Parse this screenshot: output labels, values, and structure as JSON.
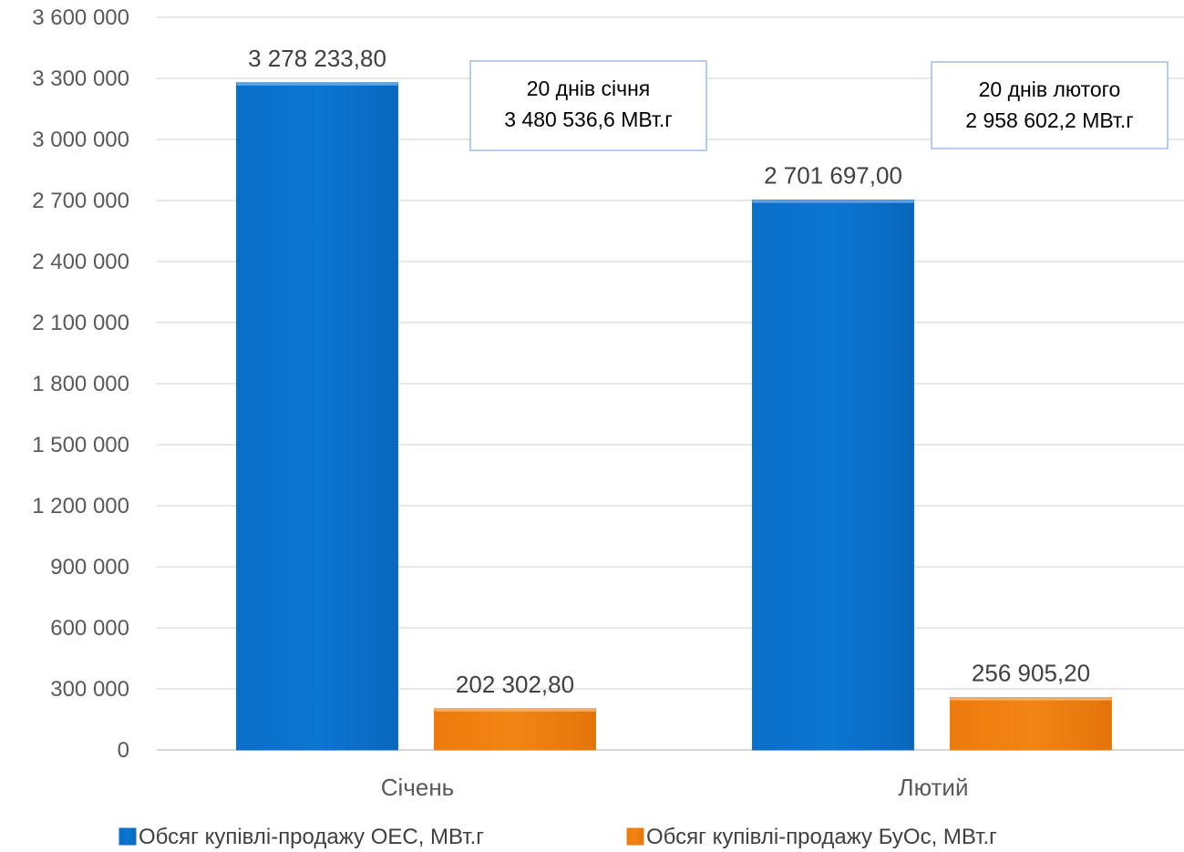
{
  "chart_data": {
    "type": "bar",
    "categories": [
      "Січень",
      "Лютий"
    ],
    "series": [
      {
        "name": "Обсяг купівлі-продажу ОЕС, МВт.г",
        "values": [
          3278233.8,
          2701697.0
        ],
        "labels": [
          "3 278 233,80",
          "2 701 697,00"
        ],
        "color": "#0a72cc"
      },
      {
        "name": "Обсяг купівлі-продажу БуОс, МВт.г",
        "values": [
          202302.8,
          256905.2
        ],
        "labels": [
          "202 302,80",
          "256 905,20"
        ],
        "color": "#f07f11"
      }
    ],
    "ylim": [
      0,
      3600000
    ],
    "yticks": [
      0,
      300000,
      600000,
      900000,
      1200000,
      1500000,
      1800000,
      2100000,
      2400000,
      2700000,
      3000000,
      3300000,
      3600000
    ],
    "ytick_labels": [
      "0",
      "300 000",
      "600 000",
      "900 000",
      "1 200 000",
      "1 500 000",
      "1 800 000",
      "2 100 000",
      "2 400 000",
      "2 700 000",
      "3 000 000",
      "3 300 000",
      "3 600 000"
    ],
    "annotations": [
      {
        "category": "Січень",
        "lines": [
          "20 днів січня",
          "3 480 536,6 МВт.г"
        ]
      },
      {
        "category": "Лютий",
        "lines": [
          "20 днів лютого",
          "2 958 602,2 МВт.г"
        ]
      }
    ],
    "grid": true,
    "legend_position": "bottom",
    "title": "",
    "xlabel": "",
    "ylabel": ""
  }
}
